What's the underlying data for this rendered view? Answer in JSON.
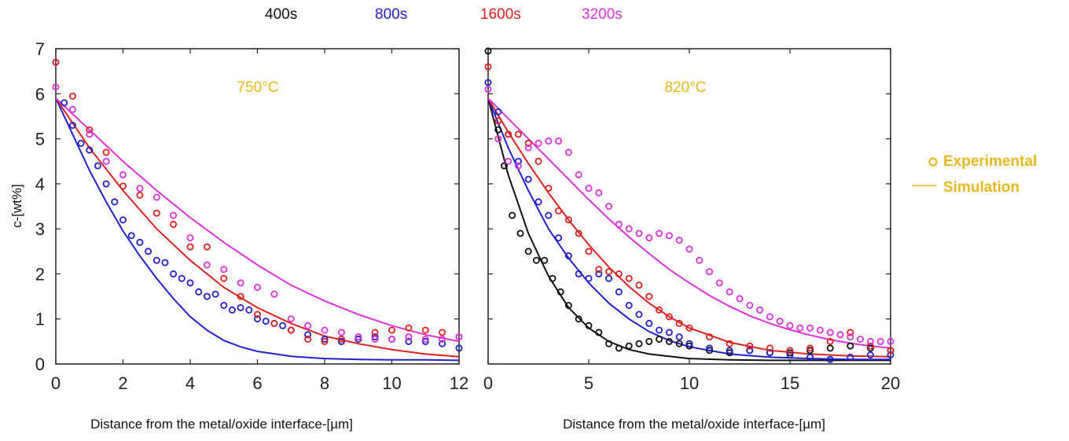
{
  "legend": {
    "times": [
      {
        "label": "400s",
        "color": "#111111"
      },
      {
        "label": "800s",
        "color": "#2222cc"
      },
      {
        "label": "1600s",
        "color": "#dd2222"
      },
      {
        "label": "3200s",
        "color": "#dd33dd"
      }
    ],
    "experimental_label": "Experimental",
    "simulation_label": "Simulation",
    "label_color": "#e8b820"
  },
  "ylabel": "c-[wt%]",
  "chart_data": [
    {
      "type": "scatter",
      "title": "750°C",
      "title_color": "#e8b820",
      "xlabel": "Distance from the metal/oxide  interface-[µm]",
      "ylabel": "c-[wt%]",
      "xlim": [
        0,
        12
      ],
      "ylim": [
        0,
        7
      ],
      "xticks": [
        0,
        2,
        4,
        6,
        8,
        10,
        12
      ],
      "yticks": [
        0,
        1,
        2,
        3,
        4,
        5,
        6,
        7
      ],
      "series": [
        {
          "color": "#2222cc",
          "experimental": {
            "x": [
              0,
              0.25,
              0.5,
              0.75,
              1,
              1.25,
              1.5,
              1.75,
              2,
              2.25,
              2.5,
              2.75,
              3,
              3.25,
              3.5,
              3.75,
              4,
              4.25,
              4.5,
              4.75,
              5,
              5.25,
              5.5,
              5.75,
              6,
              6.25,
              6.5,
              6.75,
              7,
              7.5,
              8,
              8.5,
              9,
              9.5,
              10,
              10.5,
              11,
              11.5,
              12
            ],
            "y": [
              6.7,
              5.8,
              5.3,
              4.9,
              4.75,
              4.4,
              4.0,
              3.6,
              3.2,
              2.85,
              2.7,
              2.5,
              2.3,
              2.25,
              2.0,
              1.9,
              1.8,
              1.6,
              1.5,
              1.55,
              1.3,
              1.2,
              1.25,
              1.2,
              1.0,
              0.95,
              0.9,
              0.85,
              0.75,
              0.65,
              0.55,
              0.5,
              0.55,
              0.6,
              0.55,
              0.5,
              0.5,
              0.45,
              0.35
            ]
          },
          "simulation": {
            "x": [
              0,
              0.5,
              1,
              1.5,
              2,
              2.5,
              3,
              3.5,
              4,
              4.5,
              5,
              5.5,
              6,
              7,
              8,
              9,
              10,
              11,
              12
            ],
            "y": [
              5.9,
              5.1,
              4.3,
              3.6,
              2.95,
              2.4,
              1.9,
              1.45,
              1.05,
              0.75,
              0.52,
              0.38,
              0.28,
              0.17,
              0.12,
              0.1,
              0.09,
              0.09,
              0.08
            ]
          }
        },
        {
          "color": "#dd2222",
          "experimental": {
            "x": [
              0,
              0.5,
              1,
              1.5,
              2,
              2.5,
              3,
              3.5,
              4,
              4.5,
              5,
              5.5,
              6,
              6.5,
              7,
              7.5,
              8,
              8.5,
              9,
              9.5,
              10,
              10.5,
              11,
              11.5,
              12
            ],
            "y": [
              6.7,
              5.95,
              5.2,
              4.7,
              3.95,
              3.75,
              3.35,
              3.1,
              2.6,
              2.6,
              1.9,
              1.5,
              1.1,
              0.9,
              0.75,
              0.55,
              0.5,
              0.55,
              0.6,
              0.7,
              0.75,
              0.8,
              0.75,
              0.7,
              0.6
            ]
          },
          "simulation": {
            "x": [
              0,
              1,
              2,
              3,
              4,
              5,
              6,
              7,
              8,
              9,
              10,
              11,
              12
            ],
            "y": [
              5.9,
              4.8,
              3.85,
              3.0,
              2.3,
              1.7,
              1.25,
              0.9,
              0.62,
              0.45,
              0.32,
              0.22,
              0.16
            ]
          }
        },
        {
          "color": "#dd33dd",
          "experimental": {
            "x": [
              0,
              0.5,
              1,
              1.5,
              2,
              2.5,
              3,
              3.5,
              4,
              4.5,
              5,
              5.5,
              6,
              6.5,
              7,
              7.5,
              8,
              8.5,
              9,
              9.5,
              10,
              10.5,
              11,
              11.5,
              12
            ],
            "y": [
              6.15,
              5.65,
              5.1,
              4.5,
              4.2,
              3.9,
              3.7,
              3.3,
              2.8,
              2.2,
              2.1,
              1.8,
              1.7,
              1.55,
              1.0,
              0.85,
              0.75,
              0.7,
              0.6,
              0.55,
              0.55,
              0.6,
              0.55,
              0.55,
              0.6
            ]
          },
          "simulation": {
            "x": [
              0,
              1,
              2,
              3,
              4,
              5,
              6,
              7,
              8,
              9,
              10,
              11,
              12
            ],
            "y": [
              5.9,
              5.2,
              4.5,
              3.85,
              3.25,
              2.7,
              2.2,
              1.75,
              1.4,
              1.1,
              0.85,
              0.65,
              0.5
            ]
          }
        }
      ]
    },
    {
      "type": "scatter",
      "title": "820°C",
      "title_color": "#e8b820",
      "xlabel": "Distance from the metal/oxide  interface-[µm]",
      "xlim": [
        0,
        20
      ],
      "ylim": [
        0,
        7
      ],
      "xticks": [
        0,
        5,
        10,
        15,
        20
      ],
      "yticks": [
        0,
        1,
        2,
        3,
        4,
        5,
        6,
        7
      ],
      "series": [
        {
          "color": "#111111",
          "experimental": {
            "x": [
              0,
              0.5,
              0.8,
              1.2,
              1.6,
              2,
              2.4,
              2.8,
              3.2,
              3.6,
              4,
              4.5,
              5,
              5.5,
              6,
              6.5,
              7,
              7.5,
              8,
              8.5,
              9,
              9.5,
              10,
              11,
              12,
              13,
              14,
              15,
              16,
              17,
              18,
              19,
              20
            ],
            "y": [
              6.95,
              5.2,
              4.4,
              3.3,
              2.9,
              2.5,
              2.3,
              2.3,
              1.9,
              1.6,
              1.3,
              1.0,
              0.85,
              0.7,
              0.45,
              0.35,
              0.4,
              0.45,
              0.5,
              0.55,
              0.5,
              0.45,
              0.4,
              0.3,
              0.25,
              0.3,
              0.25,
              0.25,
              0.3,
              0.35,
              0.4,
              0.35,
              0.3
            ]
          },
          "simulation": {
            "x": [
              0,
              1,
              2,
              3,
              4,
              5,
              6,
              7,
              8,
              10,
              12,
              14,
              16,
              18,
              20
            ],
            "y": [
              5.9,
              4.2,
              2.9,
              1.95,
              1.25,
              0.8,
              0.5,
              0.32,
              0.22,
              0.12,
              0.09,
              0.08,
              0.08,
              0.08,
              0.08
            ]
          }
        },
        {
          "color": "#2222cc",
          "experimental": {
            "x": [
              0,
              0.5,
              1,
              1.5,
              2,
              2.5,
              3,
              3.5,
              4,
              4.5,
              5,
              5.5,
              6,
              6.5,
              7,
              7.5,
              8,
              8.5,
              9,
              9.5,
              10,
              11,
              12,
              13,
              14,
              15,
              16,
              17,
              18,
              19,
              20
            ],
            "y": [
              6.25,
              5.6,
              5.1,
              4.5,
              4.1,
              3.6,
              3.3,
              2.8,
              2.4,
              2.0,
              1.9,
              2.0,
              1.9,
              1.6,
              1.3,
              1.1,
              0.9,
              0.75,
              0.7,
              0.6,
              0.45,
              0.35,
              0.3,
              0.3,
              0.25,
              0.2,
              0.15,
              0.1,
              0.15,
              0.2,
              0.2
            ]
          },
          "simulation": {
            "x": [
              0,
              1,
              2,
              3,
              4,
              5,
              6,
              7,
              8,
              9,
              10,
              12,
              14,
              16,
              18,
              20
            ],
            "y": [
              5.9,
              4.8,
              3.85,
              3.0,
              2.35,
              1.8,
              1.35,
              1.0,
              0.72,
              0.52,
              0.38,
              0.22,
              0.15,
              0.12,
              0.1,
              0.1
            ]
          }
        },
        {
          "color": "#dd2222",
          "experimental": {
            "x": [
              0,
              0.5,
              1,
              1.5,
              2,
              2.5,
              3,
              3.5,
              4,
              4.5,
              5,
              5.5,
              6,
              6.5,
              7,
              7.5,
              8,
              8.5,
              9,
              9.5,
              10,
              11,
              12,
              13,
              14,
              15,
              16,
              17,
              18,
              19,
              20
            ],
            "y": [
              6.6,
              5.4,
              5.1,
              5.1,
              4.9,
              4.5,
              3.9,
              3.4,
              3.2,
              2.9,
              2.5,
              2.1,
              2.05,
              2.0,
              1.9,
              1.75,
              1.5,
              1.2,
              1.05,
              0.9,
              0.8,
              0.6,
              0.45,
              0.4,
              0.35,
              0.3,
              0.35,
              0.5,
              0.7,
              0.4,
              0.3
            ]
          },
          "simulation": {
            "x": [
              0,
              1,
              2,
              3,
              4,
              5,
              6,
              7,
              8,
              9,
              10,
              12,
              14,
              16,
              18,
              20
            ],
            "y": [
              5.9,
              5.15,
              4.45,
              3.8,
              3.2,
              2.65,
              2.15,
              1.72,
              1.35,
              1.05,
              0.8,
              0.48,
              0.3,
              0.22,
              0.18,
              0.16
            ]
          }
        },
        {
          "color": "#dd33dd",
          "experimental": {
            "x": [
              0,
              0.5,
              1,
              1.5,
              2,
              2.5,
              3,
              3.5,
              4,
              4.5,
              5,
              5.5,
              6,
              6.5,
              7,
              7.5,
              8,
              8.5,
              9,
              9.5,
              10,
              10.5,
              11,
              11.5,
              12,
              12.5,
              13,
              13.5,
              14,
              14.5,
              15,
              15.5,
              16,
              16.5,
              17,
              17.5,
              18,
              18.5,
              19,
              19.5,
              20
            ],
            "y": [
              6.1,
              5.0,
              4.5,
              4.4,
              4.8,
              4.9,
              4.95,
              4.95,
              4.7,
              4.2,
              3.9,
              3.8,
              3.5,
              3.1,
              3.0,
              2.9,
              2.8,
              2.9,
              2.85,
              2.75,
              2.55,
              2.3,
              2.05,
              1.8,
              1.6,
              1.45,
              1.3,
              1.2,
              1.05,
              0.95,
              0.85,
              0.8,
              0.8,
              0.75,
              0.7,
              0.65,
              0.6,
              0.55,
              0.5,
              0.5,
              0.5
            ]
          },
          "simulation": {
            "x": [
              0,
              1,
              2,
              3,
              4,
              5,
              6,
              7,
              8,
              9,
              10,
              11,
              12,
              13,
              14,
              15,
              16,
              17,
              18,
              19,
              20
            ],
            "y": [
              5.9,
              5.45,
              5.0,
              4.55,
              4.1,
              3.65,
              3.22,
              2.82,
              2.45,
              2.1,
              1.8,
              1.52,
              1.28,
              1.07,
              0.9,
              0.76,
              0.64,
              0.54,
              0.46,
              0.4,
              0.35
            ]
          }
        }
      ]
    }
  ]
}
